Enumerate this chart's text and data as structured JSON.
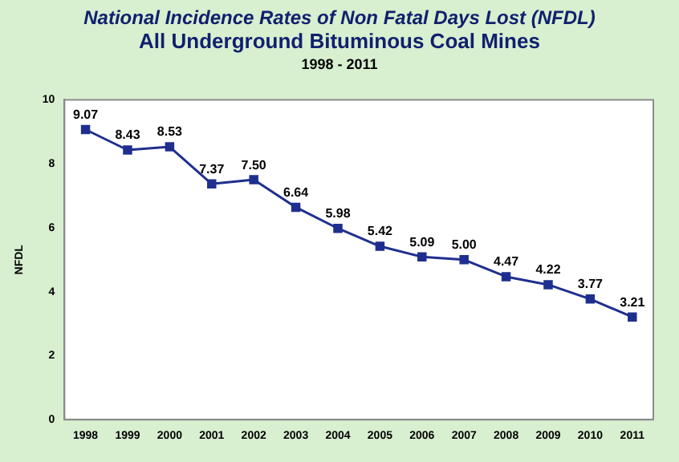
{
  "chart_data": {
    "type": "line",
    "title": "National Incidence Rates of Non Fatal Days Lost (NFDL)",
    "subtitle": "All Underground Bituminous Coal Mines",
    "annotations": [
      "1998 - 2011"
    ],
    "ylabel": "NFDL",
    "categories": [
      "1998",
      "1999",
      "2000",
      "2001",
      "2002",
      "2003",
      "2004",
      "2005",
      "2006",
      "2007",
      "2008",
      "2009",
      "2010",
      "2011"
    ],
    "series": [
      {
        "color": "#1f2f8f",
        "values": [
          9.07,
          8.43,
          8.53,
          7.37,
          7.5,
          6.64,
          5.98,
          5.42,
          5.09,
          5.0,
          4.47,
          4.22,
          3.77,
          3.21
        ],
        "value_labels": [
          "9.07",
          "8.43",
          "8.53",
          "7.37",
          "7.50",
          "6.64",
          "5.98",
          "5.42",
          "5.09",
          "5.00",
          "4.47",
          "4.22",
          "3.77",
          "3.21"
        ]
      }
    ],
    "ylim": [
      0,
      10
    ],
    "yticks": [
      0,
      2,
      4,
      6,
      8,
      10
    ],
    "grid": false,
    "legend": false,
    "marker": "square",
    "line_style": "solid"
  }
}
